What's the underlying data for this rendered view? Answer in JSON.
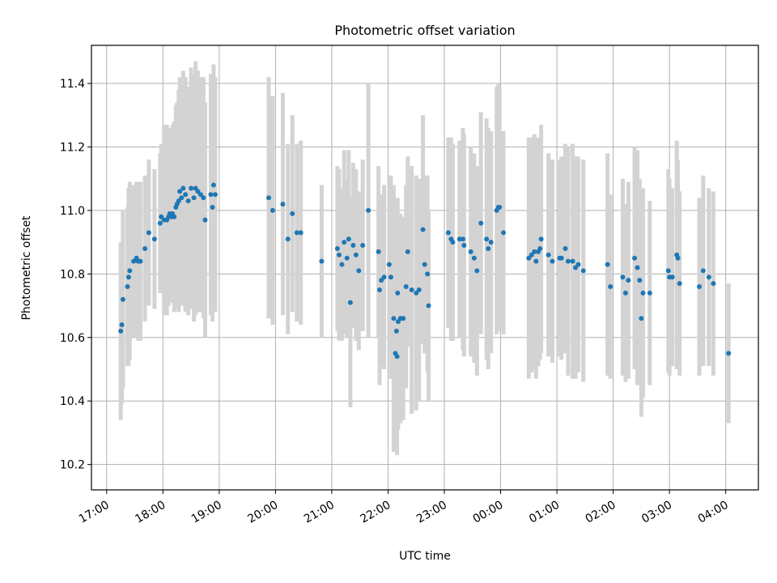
{
  "colors": {
    "point": "#1f77b4",
    "errorbar": "#d3d3d3",
    "grid": "#b0b0b0",
    "axis": "#000000"
  },
  "chart_data": {
    "type": "scatter",
    "title": "Photometric offset variation",
    "xlabel": "UTC time",
    "ylabel": "Photometric offset",
    "x_unit": "hours since 17:00 UTC",
    "x_tick_values": [
      0,
      1,
      2,
      3,
      4,
      5,
      6,
      7,
      8,
      9,
      10,
      11
    ],
    "x_tick_labels": [
      "17:00",
      "18:00",
      "19:00",
      "20:00",
      "21:00",
      "22:00",
      "23:00",
      "00:00",
      "01:00",
      "02:00",
      "03:00",
      "04:00"
    ],
    "y_ticks": [
      "10.2",
      "10.4",
      "10.6",
      "10.8",
      "11.0",
      "11.2",
      "11.4"
    ],
    "xlim": [
      -0.27,
      11.58
    ],
    "ylim": [
      10.12,
      11.52
    ],
    "grid": true,
    "series": [
      {
        "marker": "circle",
        "error_bars": true,
        "points": [
          {
            "x": 0.25,
            "y": 10.62,
            "err": 0.28
          },
          {
            "x": 0.27,
            "y": 10.64,
            "err": 0.25
          },
          {
            "x": 0.29,
            "y": 10.72,
            "err": 0.28
          },
          {
            "x": 0.37,
            "y": 10.76,
            "err": 0.25
          },
          {
            "x": 0.39,
            "y": 10.79,
            "err": 0.28
          },
          {
            "x": 0.41,
            "y": 10.81,
            "err": 0.28
          },
          {
            "x": 0.48,
            "y": 10.84,
            "err": 0.24
          },
          {
            "x": 0.53,
            "y": 10.85,
            "err": 0.24
          },
          {
            "x": 0.56,
            "y": 10.84,
            "err": 0.25
          },
          {
            "x": 0.6,
            "y": 10.84,
            "err": 0.25
          },
          {
            "x": 0.68,
            "y": 10.88,
            "err": 0.23
          },
          {
            "x": 0.75,
            "y": 10.93,
            "err": 0.23
          },
          {
            "x": 0.85,
            "y": 10.91,
            "err": 0.22
          },
          {
            "x": 0.95,
            "y": 10.96,
            "err": 0.22
          },
          {
            "x": 0.97,
            "y": 10.98,
            "err": 0.23
          },
          {
            "x": 1.02,
            "y": 10.97,
            "err": 0.3
          },
          {
            "x": 1.07,
            "y": 10.97,
            "err": 0.3
          },
          {
            "x": 1.1,
            "y": 10.98,
            "err": 0.28
          },
          {
            "x": 1.12,
            "y": 10.99,
            "err": 0.27
          },
          {
            "x": 1.15,
            "y": 10.98,
            "err": 0.27
          },
          {
            "x": 1.17,
            "y": 10.99,
            "err": 0.28
          },
          {
            "x": 1.2,
            "y": 10.98,
            "err": 0.3
          },
          {
            "x": 1.23,
            "y": 11.01,
            "err": 0.32
          },
          {
            "x": 1.25,
            "y": 11.02,
            "err": 0.32
          },
          {
            "x": 1.28,
            "y": 11.03,
            "err": 0.35
          },
          {
            "x": 1.3,
            "y": 11.06,
            "err": 0.36
          },
          {
            "x": 1.33,
            "y": 11.04,
            "err": 0.34
          },
          {
            "x": 1.36,
            "y": 11.07,
            "err": 0.37
          },
          {
            "x": 1.4,
            "y": 11.05,
            "err": 0.37
          },
          {
            "x": 1.45,
            "y": 11.03,
            "err": 0.36
          },
          {
            "x": 1.5,
            "y": 11.07,
            "err": 0.38
          },
          {
            "x": 1.55,
            "y": 11.04,
            "err": 0.39
          },
          {
            "x": 1.58,
            "y": 11.07,
            "err": 0.4
          },
          {
            "x": 1.62,
            "y": 11.06,
            "err": 0.38
          },
          {
            "x": 1.67,
            "y": 11.05,
            "err": 0.37
          },
          {
            "x": 1.72,
            "y": 11.04,
            "err": 0.38
          },
          {
            "x": 1.75,
            "y": 10.97,
            "err": 0.37
          },
          {
            "x": 1.85,
            "y": 11.05,
            "err": 0.38
          },
          {
            "x": 1.88,
            "y": 11.01,
            "err": 0.36
          },
          {
            "x": 1.9,
            "y": 11.08,
            "err": 0.38
          },
          {
            "x": 1.93,
            "y": 11.05,
            "err": 0.37
          },
          {
            "x": 2.88,
            "y": 11.04,
            "err": 0.38
          },
          {
            "x": 2.95,
            "y": 11.0,
            "err": 0.36
          },
          {
            "x": 3.13,
            "y": 11.02,
            "err": 0.35
          },
          {
            "x": 3.22,
            "y": 10.91,
            "err": 0.3
          },
          {
            "x": 3.3,
            "y": 10.99,
            "err": 0.31
          },
          {
            "x": 3.38,
            "y": 10.93,
            "err": 0.28
          },
          {
            "x": 3.45,
            "y": 10.93,
            "err": 0.29
          },
          {
            "x": 3.82,
            "y": 10.84,
            "err": 0.24
          },
          {
            "x": 4.1,
            "y": 10.88,
            "err": 0.26
          },
          {
            "x": 4.13,
            "y": 10.86,
            "err": 0.27
          },
          {
            "x": 4.18,
            "y": 10.83,
            "err": 0.24
          },
          {
            "x": 4.22,
            "y": 10.9,
            "err": 0.29
          },
          {
            "x": 4.27,
            "y": 10.85,
            "err": 0.25
          },
          {
            "x": 4.3,
            "y": 10.91,
            "err": 0.28
          },
          {
            "x": 4.33,
            "y": 10.71,
            "err": 0.33
          },
          {
            "x": 4.38,
            "y": 10.89,
            "err": 0.26
          },
          {
            "x": 4.43,
            "y": 10.86,
            "err": 0.27
          },
          {
            "x": 4.48,
            "y": 10.81,
            "err": 0.25
          },
          {
            "x": 4.55,
            "y": 10.89,
            "err": 0.27
          },
          {
            "x": 4.65,
            "y": 11.0,
            "err": 0.4
          },
          {
            "x": 4.83,
            "y": 10.87,
            "err": 0.27
          },
          {
            "x": 4.85,
            "y": 10.75,
            "err": 0.3
          },
          {
            "x": 4.88,
            "y": 10.78,
            "err": 0.27
          },
          {
            "x": 4.93,
            "y": 10.79,
            "err": 0.29
          },
          {
            "x": 5.02,
            "y": 10.83,
            "err": 0.28
          },
          {
            "x": 5.05,
            "y": 10.79,
            "err": 0.32
          },
          {
            "x": 5.1,
            "y": 10.66,
            "err": 0.42
          },
          {
            "x": 5.15,
            "y": 10.62,
            "err": 0.3
          },
          {
            "x": 5.13,
            "y": 10.55,
            "err": 0.31
          },
          {
            "x": 5.16,
            "y": 10.54,
            "err": 0.31
          },
          {
            "x": 5.17,
            "y": 10.74,
            "err": 0.3
          },
          {
            "x": 5.18,
            "y": 10.65,
            "err": 0.34
          },
          {
            "x": 5.22,
            "y": 10.66,
            "err": 0.33
          },
          {
            "x": 5.27,
            "y": 10.66,
            "err": 0.32
          },
          {
            "x": 5.32,
            "y": 10.76,
            "err": 0.32
          },
          {
            "x": 5.35,
            "y": 10.87,
            "err": 0.3
          },
          {
            "x": 5.42,
            "y": 10.75,
            "err": 0.39
          },
          {
            "x": 5.5,
            "y": 10.74,
            "err": 0.37
          },
          {
            "x": 5.55,
            "y": 10.75,
            "err": 0.35
          },
          {
            "x": 5.62,
            "y": 10.94,
            "err": 0.36
          },
          {
            "x": 5.65,
            "y": 10.83,
            "err": 0.28
          },
          {
            "x": 5.7,
            "y": 10.8,
            "err": 0.31
          },
          {
            "x": 5.72,
            "y": 10.7,
            "err": 0.3
          },
          {
            "x": 6.07,
            "y": 10.93,
            "err": 0.3
          },
          {
            "x": 6.12,
            "y": 10.91,
            "err": 0.32
          },
          {
            "x": 6.15,
            "y": 10.9,
            "err": 0.31
          },
          {
            "x": 6.27,
            "y": 10.91,
            "err": 0.31
          },
          {
            "x": 6.33,
            "y": 10.91,
            "err": 0.35
          },
          {
            "x": 6.35,
            "y": 10.89,
            "err": 0.35
          },
          {
            "x": 6.47,
            "y": 10.87,
            "err": 0.33
          },
          {
            "x": 6.53,
            "y": 10.85,
            "err": 0.33
          },
          {
            "x": 6.58,
            "y": 10.81,
            "err": 0.33
          },
          {
            "x": 6.65,
            "y": 10.96,
            "err": 0.35
          },
          {
            "x": 6.75,
            "y": 10.91,
            "err": 0.38
          },
          {
            "x": 6.78,
            "y": 10.88,
            "err": 0.38
          },
          {
            "x": 6.83,
            "y": 10.9,
            "err": 0.35
          },
          {
            "x": 6.93,
            "y": 11.0,
            "err": 0.39
          },
          {
            "x": 6.96,
            "y": 11.01,
            "err": 0.39
          },
          {
            "x": 6.98,
            "y": 11.01,
            "err": 0.38
          },
          {
            "x": 7.05,
            "y": 10.93,
            "err": 0.32
          },
          {
            "x": 7.5,
            "y": 10.85,
            "err": 0.38
          },
          {
            "x": 7.55,
            "y": 10.86,
            "err": 0.37
          },
          {
            "x": 7.6,
            "y": 10.87,
            "err": 0.37
          },
          {
            "x": 7.63,
            "y": 10.84,
            "err": 0.37
          },
          {
            "x": 7.67,
            "y": 10.87,
            "err": 0.36
          },
          {
            "x": 7.7,
            "y": 10.88,
            "err": 0.35
          },
          {
            "x": 7.72,
            "y": 10.91,
            "err": 0.36
          },
          {
            "x": 7.85,
            "y": 10.86,
            "err": 0.32
          },
          {
            "x": 7.92,
            "y": 10.84,
            "err": 0.32
          },
          {
            "x": 8.05,
            "y": 10.85,
            "err": 0.31
          },
          {
            "x": 8.08,
            "y": 10.85,
            "err": 0.32
          },
          {
            "x": 8.15,
            "y": 10.88,
            "err": 0.33
          },
          {
            "x": 8.2,
            "y": 10.84,
            "err": 0.36
          },
          {
            "x": 8.28,
            "y": 10.84,
            "err": 0.37
          },
          {
            "x": 8.33,
            "y": 10.82,
            "err": 0.35
          },
          {
            "x": 8.38,
            "y": 10.83,
            "err": 0.34
          },
          {
            "x": 8.47,
            "y": 10.81,
            "err": 0.35
          },
          {
            "x": 8.9,
            "y": 10.83,
            "err": 0.35
          },
          {
            "x": 8.95,
            "y": 10.76,
            "err": 0.29
          },
          {
            "x": 9.17,
            "y": 10.79,
            "err": 0.31
          },
          {
            "x": 9.22,
            "y": 10.74,
            "err": 0.28
          },
          {
            "x": 9.27,
            "y": 10.78,
            "err": 0.31
          },
          {
            "x": 9.38,
            "y": 10.85,
            "err": 0.35
          },
          {
            "x": 9.43,
            "y": 10.82,
            "err": 0.37
          },
          {
            "x": 9.47,
            "y": 10.78,
            "err": 0.32
          },
          {
            "x": 9.5,
            "y": 10.66,
            "err": 0.31
          },
          {
            "x": 9.53,
            "y": 10.74,
            "err": 0.33
          },
          {
            "x": 9.65,
            "y": 10.74,
            "err": 0.29
          },
          {
            "x": 9.98,
            "y": 10.81,
            "err": 0.32
          },
          {
            "x": 10.0,
            "y": 10.79,
            "err": 0.31
          },
          {
            "x": 10.05,
            "y": 10.79,
            "err": 0.28
          },
          {
            "x": 10.13,
            "y": 10.86,
            "err": 0.36
          },
          {
            "x": 10.15,
            "y": 10.85,
            "err": 0.31
          },
          {
            "x": 10.18,
            "y": 10.77,
            "err": 0.29
          },
          {
            "x": 10.53,
            "y": 10.76,
            "err": 0.28
          },
          {
            "x": 10.6,
            "y": 10.81,
            "err": 0.3
          },
          {
            "x": 10.7,
            "y": 10.79,
            "err": 0.28
          },
          {
            "x": 10.78,
            "y": 10.77,
            "err": 0.29
          },
          {
            "x": 11.05,
            "y": 10.55,
            "err": 0.22
          }
        ]
      }
    ]
  }
}
